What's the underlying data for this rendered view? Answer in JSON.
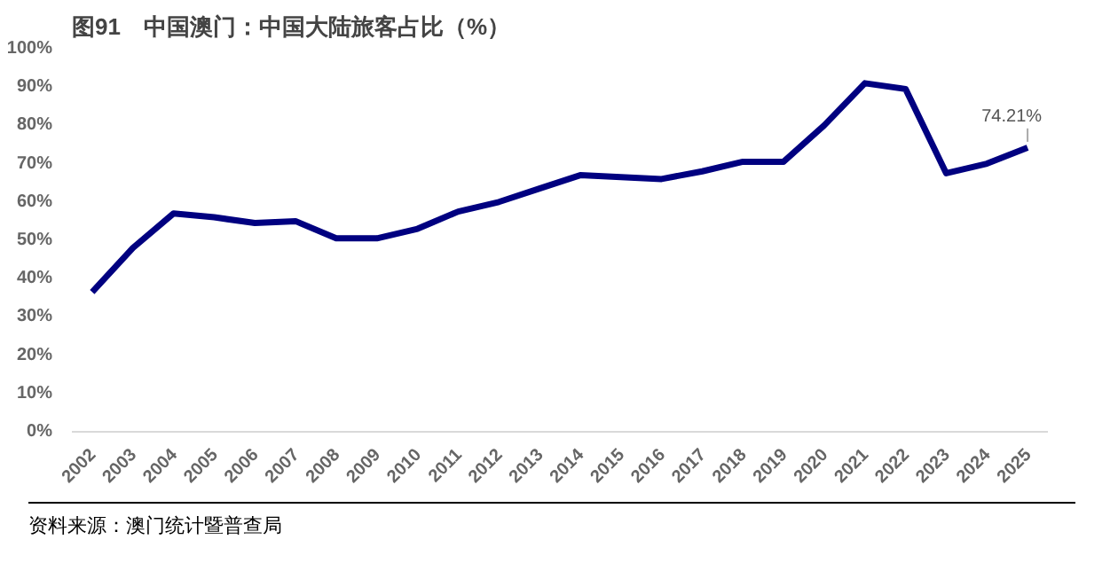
{
  "chart_data": {
    "type": "line",
    "title": "图91　中国澳门：中国大陆旅客占比（%）",
    "categories": [
      "2002",
      "2003",
      "2004",
      "2005",
      "2006",
      "2007",
      "2008",
      "2009",
      "2010",
      "2011",
      "2012",
      "2013",
      "2014",
      "2015",
      "2016",
      "2017",
      "2018",
      "2019",
      "2020",
      "2021",
      "2022",
      "2023",
      "2024",
      "2025"
    ],
    "series": [
      {
        "color": "#000080",
        "values": [
          36.5,
          48,
          57,
          56,
          54.5,
          55,
          50.5,
          50.5,
          53,
          57.5,
          60,
          63.5,
          67,
          66.5,
          66,
          68,
          70.5,
          70.5,
          80,
          91,
          89.5,
          67.5,
          70,
          74.21
        ],
        "value_labels": [
          null,
          null,
          null,
          null,
          null,
          null,
          null,
          null,
          null,
          null,
          null,
          null,
          null,
          null,
          null,
          null,
          null,
          null,
          null,
          null,
          null,
          null,
          null,
          "74.21%"
        ]
      }
    ],
    "ylim": [
      0,
      100
    ],
    "yticks": [
      {
        "value": 0,
        "label": "0%"
      },
      {
        "value": 10,
        "label": "10%"
      },
      {
        "value": 20,
        "label": "20%"
      },
      {
        "value": 30,
        "label": "30%"
      },
      {
        "value": 40,
        "label": "40%"
      },
      {
        "value": 50,
        "label": "50%"
      },
      {
        "value": 60,
        "label": "60%"
      },
      {
        "value": 70,
        "label": "70%"
      },
      {
        "value": 80,
        "label": "80%"
      },
      {
        "value": 90,
        "label": "90%"
      },
      {
        "value": 100,
        "label": "100%"
      }
    ],
    "line_style": "solid",
    "annotations": [
      "资料来源：澳门统计暨普查局"
    ]
  }
}
